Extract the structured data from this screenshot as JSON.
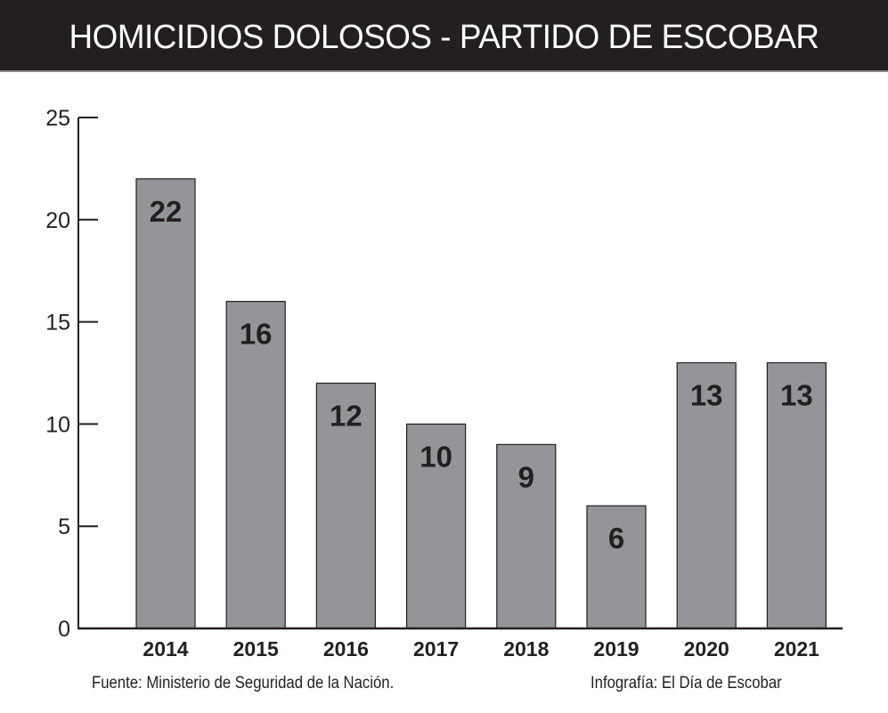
{
  "chart_data": {
    "type": "bar",
    "title": "HOMICIDIOS DOLOSOS - PARTIDO DE ESCOBAR",
    "xlabel": "",
    "ylabel": "",
    "categories": [
      "2014",
      "2015",
      "2016",
      "2017",
      "2018",
      "2019",
      "2020",
      "2021"
    ],
    "values": [
      22,
      16,
      12,
      10,
      9,
      6,
      13,
      13
    ],
    "data_labels": [
      "22",
      "16",
      "12",
      "10",
      "9",
      "6",
      "13",
      "13"
    ],
    "ylim": [
      0,
      25
    ],
    "yticks": [
      0,
      5,
      10,
      15,
      20,
      25
    ],
    "ytick_labels": [
      "0",
      "5",
      "10",
      "15",
      "20",
      "25"
    ],
    "grid": false,
    "legend": "none",
    "bar_color": "#939598",
    "bar_edge_color": "#231f20",
    "header_color": "#231f20"
  },
  "footer": {
    "source": "Fuente: Ministerio de Seguridad de la Nación.",
    "credit": "Infografía: El Día de Escobar"
  }
}
